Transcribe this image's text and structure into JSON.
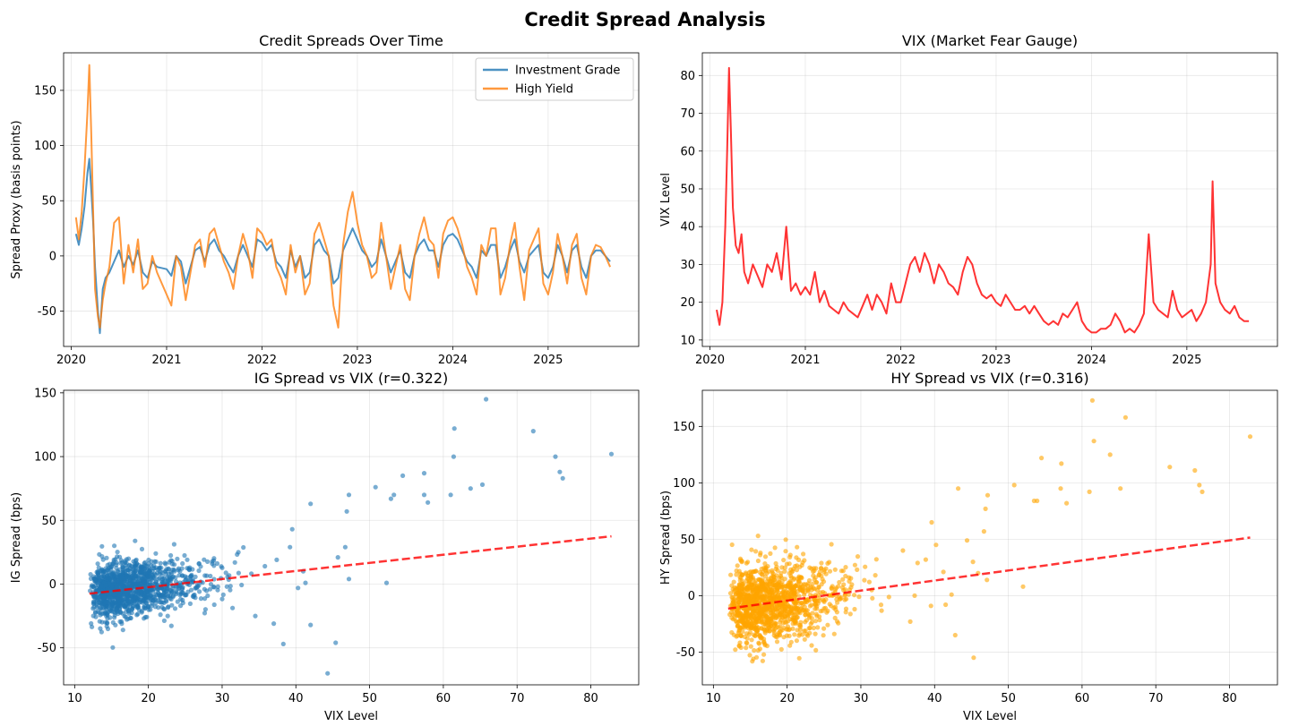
{
  "figure": {
    "title": "Credit Spread Analysis"
  },
  "chart_data": [
    {
      "type": "line",
      "title": "Credit Spreads Over Time",
      "xlabel": "",
      "ylabel": "Spread Proxy (basis points)",
      "xlim": [
        2019.92,
        2025.95
      ],
      "ylim": [
        -82,
        184
      ],
      "xticks": [
        "2020",
        "2021",
        "2022",
        "2023",
        "2024",
        "2025"
      ],
      "yticks": [
        -50,
        0,
        50,
        100,
        150
      ],
      "grid": true,
      "legend": "top-right",
      "series": [
        {
          "name": "Investment Grade",
          "color": "#1f77b4",
          "x": [
            2020.05,
            2020.08,
            2020.11,
            2020.14,
            2020.17,
            2020.19,
            2020.21,
            2020.23,
            2020.25,
            2020.28,
            2020.3,
            2020.33,
            2020.36,
            2020.4,
            2020.45,
            2020.5,
            2020.55,
            2020.6,
            2020.65,
            2020.7,
            2020.75,
            2020.8,
            2020.85,
            2020.9,
            2021.0,
            2021.05,
            2021.1,
            2021.15,
            2021.2,
            2021.25,
            2021.3,
            2021.35,
            2021.4,
            2021.45,
            2021.5,
            2021.55,
            2021.6,
            2021.65,
            2021.7,
            2021.75,
            2021.8,
            2021.85,
            2021.9,
            2021.95,
            2022.0,
            2022.05,
            2022.1,
            2022.15,
            2022.2,
            2022.25,
            2022.3,
            2022.35,
            2022.4,
            2022.45,
            2022.5,
            2022.55,
            2022.6,
            2022.65,
            2022.7,
            2022.75,
            2022.8,
            2022.85,
            2022.9,
            2022.95,
            2023.0,
            2023.05,
            2023.1,
            2023.15,
            2023.2,
            2023.25,
            2023.3,
            2023.35,
            2023.4,
            2023.45,
            2023.5,
            2023.55,
            2023.6,
            2023.65,
            2023.7,
            2023.75,
            2023.8,
            2023.85,
            2023.9,
            2023.95,
            2024.0,
            2024.05,
            2024.1,
            2024.15,
            2024.2,
            2024.25,
            2024.3,
            2024.35,
            2024.4,
            2024.45,
            2024.5,
            2024.55,
            2024.6,
            2024.65,
            2024.7,
            2024.75,
            2024.8,
            2024.85,
            2024.9,
            2024.95,
            2025.0,
            2025.05,
            2025.1,
            2025.15,
            2025.2,
            2025.25,
            2025.3,
            2025.35,
            2025.4,
            2025.45,
            2025.5,
            2025.55,
            2025.6,
            2025.65
          ],
          "y": [
            20,
            10,
            25,
            45,
            75,
            88,
            60,
            30,
            -10,
            -50,
            -70,
            -30,
            -20,
            -15,
            -5,
            5,
            -10,
            0,
            -8,
            5,
            -15,
            -20,
            -5,
            -10,
            -12,
            -18,
            0,
            -5,
            -25,
            -10,
            5,
            8,
            -5,
            10,
            15,
            5,
            0,
            -8,
            -15,
            0,
            10,
            0,
            -10,
            15,
            12,
            5,
            10,
            -5,
            -10,
            -20,
            5,
            -10,
            0,
            -20,
            -15,
            10,
            15,
            5,
            0,
            -25,
            -20,
            5,
            15,
            25,
            15,
            5,
            0,
            -10,
            -5,
            15,
            0,
            -15,
            -5,
            5,
            -15,
            -20,
            0,
            10,
            15,
            5,
            5,
            -10,
            10,
            18,
            20,
            15,
            5,
            -5,
            -10,
            -20,
            5,
            0,
            10,
            10,
            -20,
            -10,
            5,
            15,
            -5,
            -15,
            0,
            5,
            10,
            -15,
            -20,
            -10,
            10,
            0,
            -15,
            5,
            10,
            -10,
            -20,
            0,
            5,
            5,
            0,
            -5
          ]
        },
        {
          "name": "High Yield",
          "color": "#ff7f0e",
          "x": [
            2020.05,
            2020.08,
            2020.11,
            2020.14,
            2020.17,
            2020.19,
            2020.21,
            2020.23,
            2020.25,
            2020.28,
            2020.3,
            2020.33,
            2020.36,
            2020.4,
            2020.45,
            2020.5,
            2020.55,
            2020.6,
            2020.65,
            2020.7,
            2020.75,
            2020.8,
            2020.85,
            2020.9,
            2021.0,
            2021.05,
            2021.1,
            2021.15,
            2021.2,
            2021.25,
            2021.3,
            2021.35,
            2021.4,
            2021.45,
            2021.5,
            2021.55,
            2021.6,
            2021.65,
            2021.7,
            2021.75,
            2021.8,
            2021.85,
            2021.9,
            2021.95,
            2022.0,
            2022.05,
            2022.1,
            2022.15,
            2022.2,
            2022.25,
            2022.3,
            2022.35,
            2022.4,
            2022.45,
            2022.5,
            2022.55,
            2022.6,
            2022.65,
            2022.7,
            2022.75,
            2022.8,
            2022.85,
            2022.9,
            2022.95,
            2023.0,
            2023.05,
            2023.1,
            2023.15,
            2023.2,
            2023.25,
            2023.3,
            2023.35,
            2023.4,
            2023.45,
            2023.5,
            2023.55,
            2023.6,
            2023.65,
            2023.7,
            2023.75,
            2023.8,
            2023.85,
            2023.9,
            2023.95,
            2024.0,
            2024.05,
            2024.1,
            2024.15,
            2024.2,
            2024.25,
            2024.3,
            2024.35,
            2024.4,
            2024.45,
            2024.5,
            2024.55,
            2024.6,
            2024.65,
            2024.7,
            2024.75,
            2024.8,
            2024.85,
            2024.9,
            2024.95,
            2025.0,
            2025.05,
            2025.1,
            2025.15,
            2025.2,
            2025.25,
            2025.3,
            2025.35,
            2025.4,
            2025.45,
            2025.5,
            2025.55,
            2025.6,
            2025.65
          ],
          "y": [
            35,
            15,
            40,
            80,
            130,
            173,
            110,
            40,
            -30,
            -55,
            -65,
            -40,
            -25,
            -10,
            30,
            35,
            -25,
            10,
            -15,
            15,
            -30,
            -25,
            0,
            -15,
            -35,
            -45,
            0,
            -10,
            -40,
            -15,
            10,
            15,
            -10,
            20,
            25,
            10,
            -5,
            -15,
            -30,
            0,
            20,
            5,
            -20,
            25,
            20,
            10,
            15,
            -10,
            -20,
            -35,
            10,
            -15,
            0,
            -35,
            -25,
            20,
            30,
            15,
            0,
            -45,
            -65,
            10,
            40,
            58,
            30,
            10,
            0,
            -20,
            -15,
            30,
            0,
            -30,
            -10,
            10,
            -30,
            -40,
            0,
            20,
            35,
            15,
            10,
            -20,
            20,
            32,
            35,
            25,
            10,
            -10,
            -20,
            -35,
            10,
            0,
            25,
            25,
            -35,
            -20,
            10,
            30,
            -10,
            -40,
            5,
            15,
            25,
            -25,
            -35,
            -15,
            20,
            0,
            -25,
            10,
            20,
            -20,
            -35,
            0,
            10,
            8,
            0,
            -10
          ]
        }
      ]
    },
    {
      "type": "line",
      "title": "VIX (Market Fear Gauge)",
      "xlabel": "",
      "ylabel": "VIX Level",
      "xlim": [
        2019.92,
        2025.95
      ],
      "ylim": [
        8.3,
        86
      ],
      "xticks": [
        "2020",
        "2021",
        "2022",
        "2023",
        "2024",
        "2025"
      ],
      "yticks": [
        10,
        20,
        30,
        40,
        50,
        60,
        70,
        80
      ],
      "grid": true,
      "series": [
        {
          "name": "",
          "color": "#ff0000",
          "x": [
            2020.07,
            2020.1,
            2020.13,
            2020.16,
            2020.18,
            2020.2,
            2020.22,
            2020.24,
            2020.27,
            2020.3,
            2020.33,
            2020.36,
            2020.4,
            2020.45,
            2020.5,
            2020.55,
            2020.6,
            2020.65,
            2020.7,
            2020.75,
            2020.8,
            2020.85,
            2020.9,
            2020.95,
            2021.0,
            2021.05,
            2021.1,
            2021.15,
            2021.2,
            2021.25,
            2021.3,
            2021.35,
            2021.4,
            2021.45,
            2021.5,
            2021.55,
            2021.6,
            2021.65,
            2021.7,
            2021.75,
            2021.8,
            2021.85,
            2021.9,
            2021.95,
            2022.0,
            2022.05,
            2022.1,
            2022.15,
            2022.2,
            2022.25,
            2022.3,
            2022.35,
            2022.4,
            2022.45,
            2022.5,
            2022.55,
            2022.6,
            2022.65,
            2022.7,
            2022.75,
            2022.8,
            2022.85,
            2022.9,
            2022.95,
            2023.0,
            2023.05,
            2023.1,
            2023.15,
            2023.2,
            2023.25,
            2023.3,
            2023.35,
            2023.4,
            2023.45,
            2023.5,
            2023.55,
            2023.6,
            2023.65,
            2023.7,
            2023.75,
            2023.8,
            2023.85,
            2023.9,
            2023.95,
            2024.0,
            2024.05,
            2024.1,
            2024.15,
            2024.2,
            2024.25,
            2024.3,
            2024.35,
            2024.4,
            2024.45,
            2024.5,
            2024.55,
            2024.6,
            2024.65,
            2024.7,
            2024.75,
            2024.8,
            2024.85,
            2024.9,
            2024.95,
            2025.0,
            2025.05,
            2025.1,
            2025.15,
            2025.2,
            2025.25,
            2025.27,
            2025.3,
            2025.35,
            2025.4,
            2025.45,
            2025.5,
            2025.55,
            2025.6,
            2025.65
          ],
          "y": [
            18,
            14,
            20,
            40,
            60,
            82,
            65,
            45,
            35,
            33,
            38,
            28,
            25,
            30,
            27,
            24,
            30,
            28,
            33,
            26,
            40,
            23,
            25,
            22,
            24,
            22,
            28,
            20,
            23,
            19,
            18,
            17,
            20,
            18,
            17,
            16,
            19,
            22,
            18,
            22,
            20,
            17,
            25,
            20,
            20,
            25,
            30,
            32,
            28,
            33,
            30,
            25,
            30,
            28,
            25,
            24,
            22,
            28,
            32,
            30,
            25,
            22,
            21,
            22,
            20,
            19,
            22,
            20,
            18,
            18,
            19,
            17,
            19,
            17,
            15,
            14,
            15,
            14,
            17,
            16,
            18,
            20,
            15,
            13,
            12,
            12,
            13,
            13,
            14,
            17,
            15,
            12,
            13,
            12,
            14,
            17,
            38,
            20,
            18,
            17,
            16,
            23,
            18,
            16,
            17,
            18,
            15,
            17,
            20,
            30,
            52,
            25,
            20,
            18,
            17,
            19,
            16,
            15,
            15
          ]
        }
      ]
    },
    {
      "type": "scatter",
      "title": "IG Spread vs VIX (r=0.322)",
      "xlabel": "VIX Level",
      "ylabel": "IG Spread (bps)",
      "xlim": [
        8.5,
        86.5
      ],
      "ylim": [
        -79,
        152
      ],
      "xticks": [
        10,
        20,
        30,
        40,
        50,
        60,
        70,
        80
      ],
      "yticks": [
        -50,
        0,
        50,
        100,
        150
      ],
      "grid": true,
      "point_color": "#1f77b4",
      "trend_line": {
        "x": [
          12,
          82.8
        ],
        "y": [
          -7.5,
          37.5
        ],
        "color": "#ff0000"
      },
      "points": [
        [
          82.8,
          102
        ],
        [
          76.2,
          83
        ],
        [
          75.8,
          88
        ],
        [
          75.2,
          100
        ],
        [
          72.2,
          120
        ],
        [
          65.8,
          145
        ],
        [
          65.3,
          78
        ],
        [
          63.7,
          75
        ],
        [
          61.5,
          122
        ],
        [
          61.4,
          100
        ],
        [
          61,
          70
        ],
        [
          57.9,
          64
        ],
        [
          57.4,
          87
        ],
        [
          57.4,
          70
        ],
        [
          54.5,
          85
        ],
        [
          53.3,
          70
        ],
        [
          52.9,
          67
        ],
        [
          50.8,
          76
        ],
        [
          52.3,
          1
        ],
        [
          47.2,
          70
        ],
        [
          46.9,
          57
        ],
        [
          47.2,
          4
        ],
        [
          46.7,
          29
        ],
        [
          45.7,
          21
        ],
        [
          45.4,
          -46
        ],
        [
          44.3,
          -70
        ],
        [
          42,
          63
        ],
        [
          42,
          -32
        ],
        [
          41.3,
          1
        ],
        [
          41,
          10
        ],
        [
          39.5,
          43
        ],
        [
          40.3,
          -3
        ],
        [
          39.2,
          29
        ],
        [
          37.4,
          19
        ],
        [
          38.3,
          -47
        ],
        [
          37,
          -31
        ],
        [
          35.8,
          14
        ],
        [
          34.5,
          -25
        ]
      ]
    },
    {
      "type": "scatter",
      "title": "HY Spread vs VIX (r=0.316)",
      "xlabel": "VIX Level",
      "ylabel": "HY Spread (bps)",
      "xlim": [
        8.5,
        86.5
      ],
      "ylim": [
        -79,
        182
      ],
      "xticks": [
        10,
        20,
        30,
        40,
        50,
        60,
        70,
        80
      ],
      "yticks": [
        -50,
        0,
        50,
        100,
        150
      ],
      "grid": true,
      "point_color": "#ffa500",
      "trend_line": {
        "x": [
          12,
          82.8
        ],
        "y": [
          -11.5,
          51.5
        ],
        "color": "#ff0000"
      },
      "points": [
        [
          82.8,
          141
        ],
        [
          76.3,
          92
        ],
        [
          75.9,
          98
        ],
        [
          75.3,
          111
        ],
        [
          71.9,
          114
        ],
        [
          65.9,
          158
        ],
        [
          65.2,
          95
        ],
        [
          63.8,
          125
        ],
        [
          61.6,
          137
        ],
        [
          61.4,
          173
        ],
        [
          61,
          92
        ],
        [
          57.9,
          82
        ],
        [
          57.2,
          117
        ],
        [
          57.1,
          95
        ],
        [
          54.5,
          122
        ],
        [
          53.9,
          84
        ],
        [
          53.5,
          84
        ],
        [
          52,
          8
        ],
        [
          50.8,
          98
        ],
        [
          47.2,
          89
        ],
        [
          46.9,
          77
        ],
        [
          46.7,
          57
        ],
        [
          47.1,
          14
        ],
        [
          45.9,
          20
        ],
        [
          45.2,
          30
        ],
        [
          45.3,
          -55
        ],
        [
          44.4,
          49
        ],
        [
          43.2,
          95
        ],
        [
          42.8,
          -35
        ],
        [
          42.3,
          1
        ],
        [
          41.5,
          -8
        ],
        [
          40.2,
          45
        ],
        [
          39.6,
          65
        ],
        [
          41.2,
          21
        ],
        [
          39.5,
          -9
        ],
        [
          38.8,
          32
        ],
        [
          37.7,
          29
        ],
        [
          37.3,
          0
        ],
        [
          36.7,
          -23
        ],
        [
          35.7,
          40
        ]
      ]
    }
  ]
}
